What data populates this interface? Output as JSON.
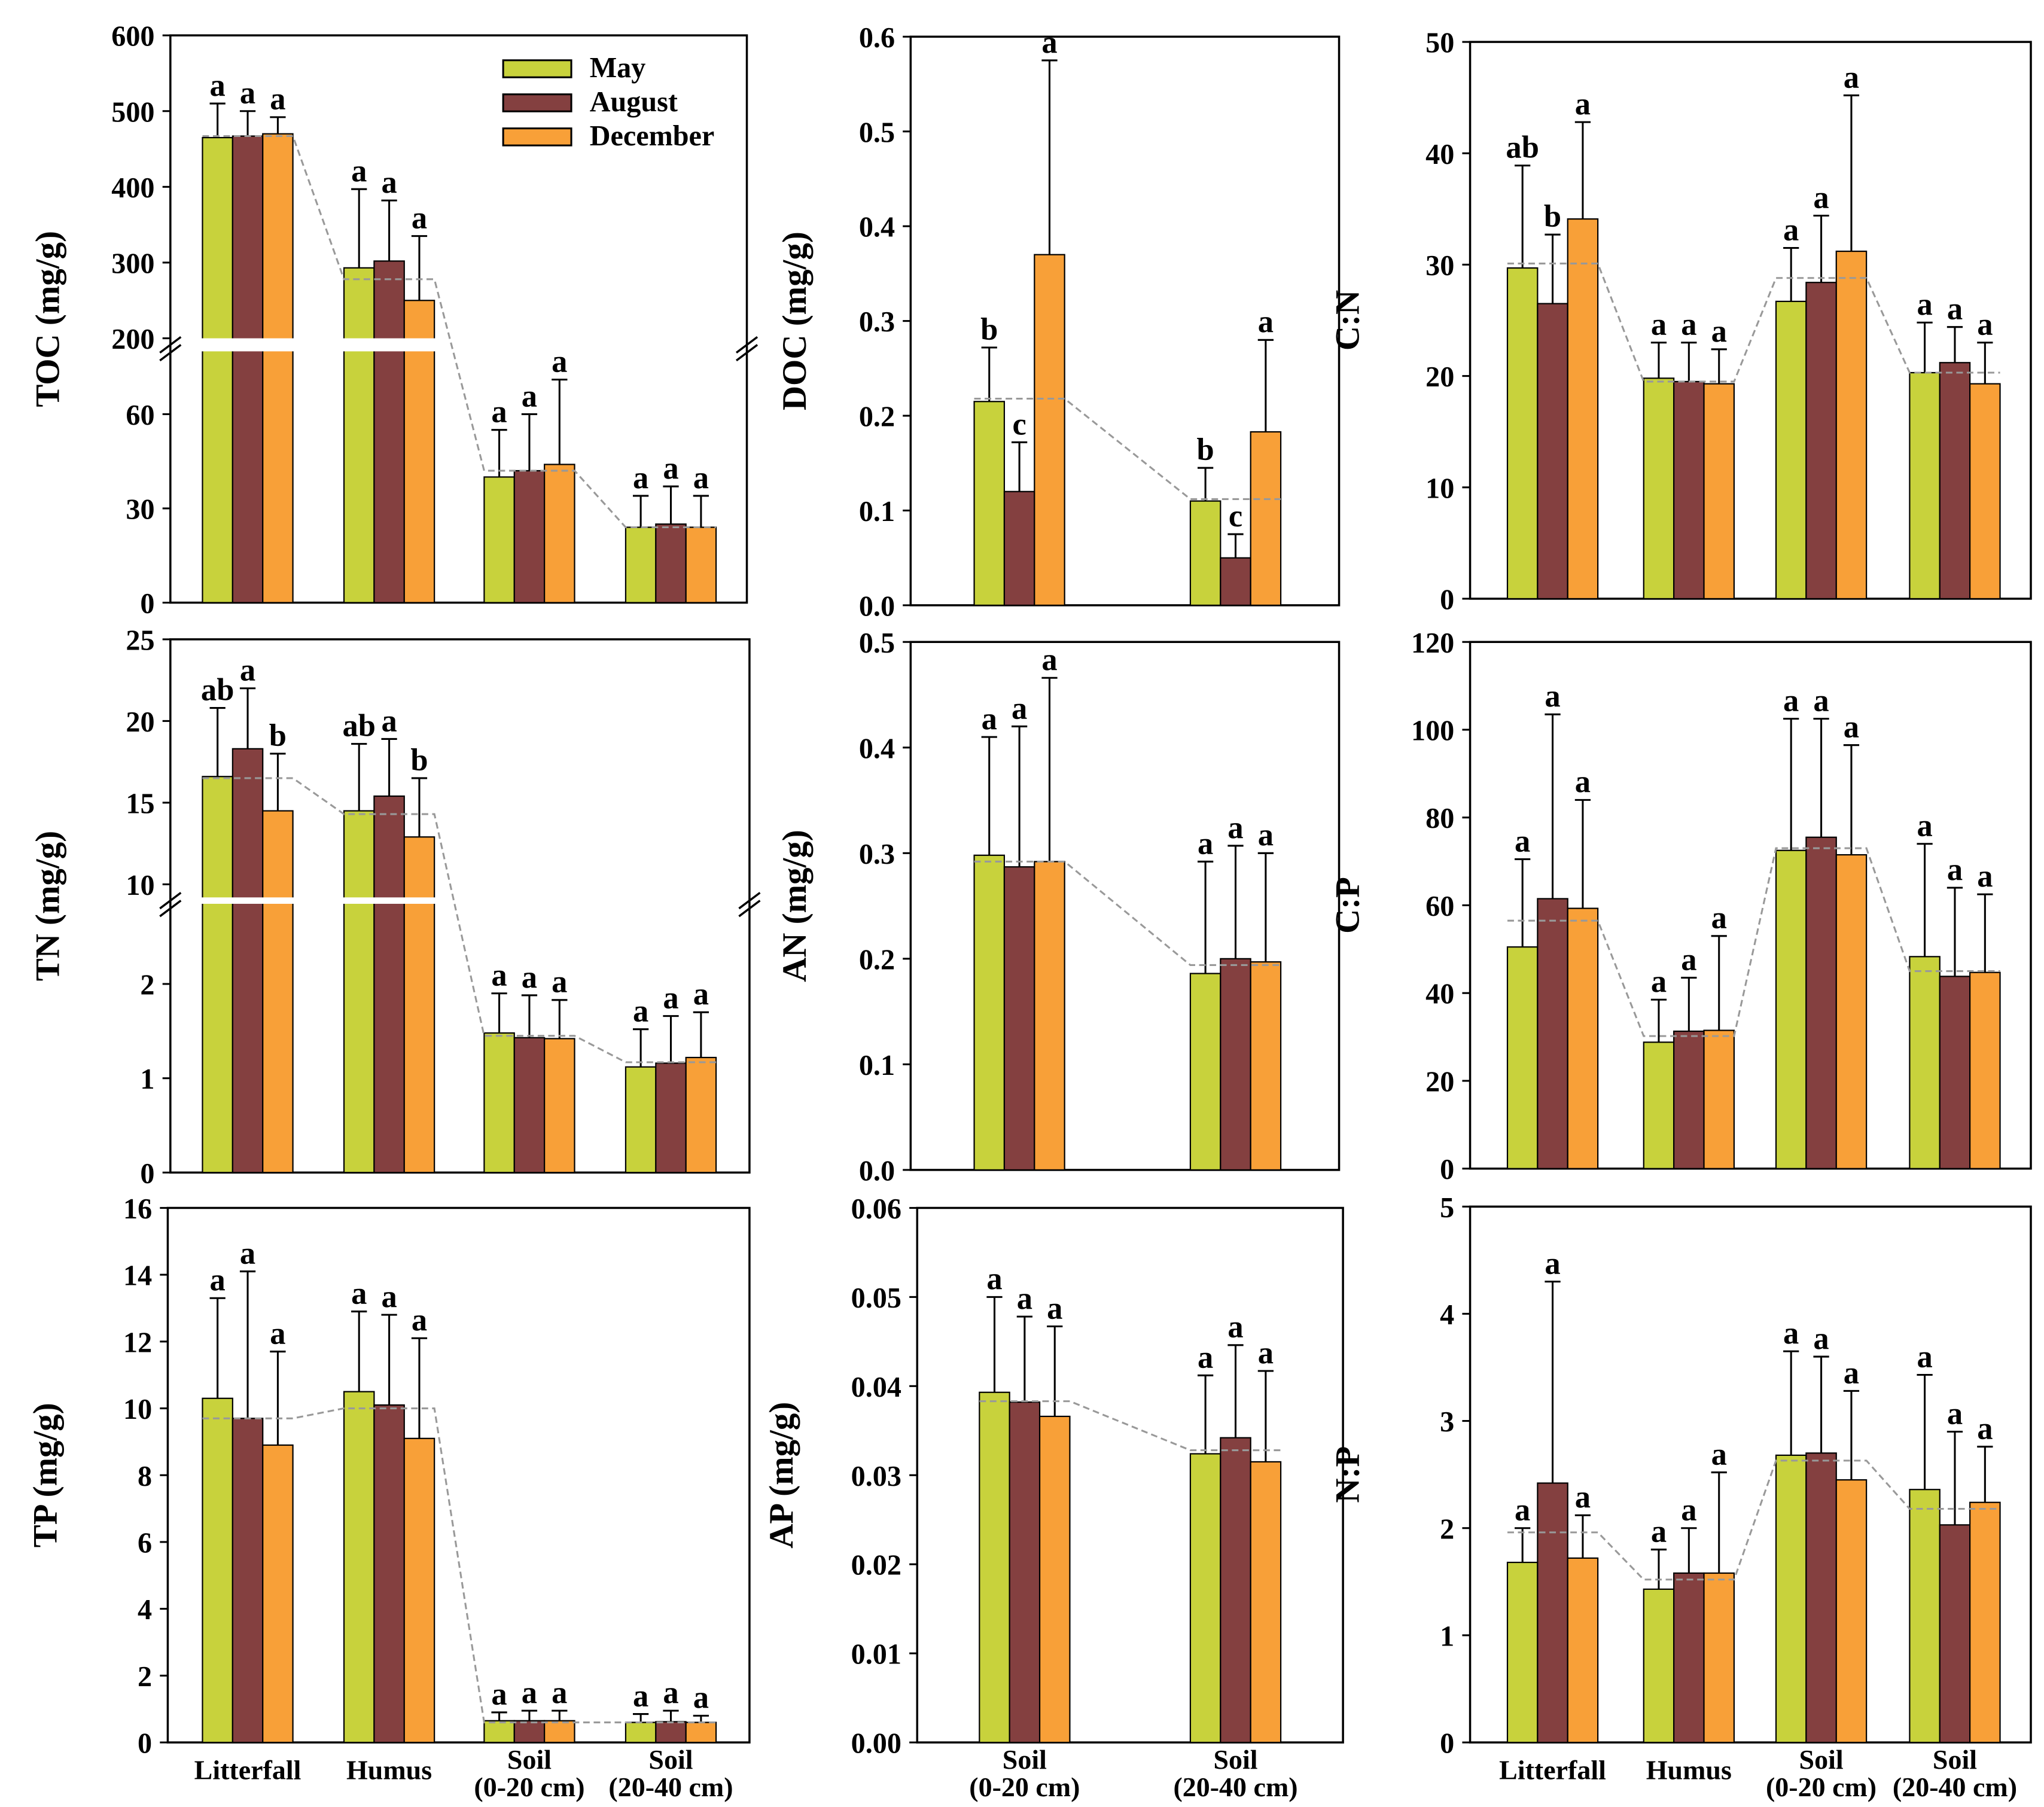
{
  "legend": {
    "items": [
      {
        "label": "May",
        "color": "#C8D23C"
      },
      {
        "label": "August",
        "color": "#844040"
      },
      {
        "label": "December",
        "color": "#F8A038"
      }
    ]
  },
  "chart_data": [
    {
      "id": "toc",
      "type": "bar",
      "ylabel": "TOC (mg/g)",
      "categories": [
        "Litterfall",
        "Humus",
        "Soil\n(0-20 cm)",
        "Soil\n(20-40 cm)"
      ],
      "yticks": [
        0,
        30,
        60,
        200,
        300,
        400,
        500,
        600
      ],
      "ylim": [
        0,
        600
      ],
      "axis_break": {
        "lower": [
          0,
          80
        ],
        "upper": [
          200,
          600
        ]
      },
      "series": [
        {
          "name": "May",
          "values": [
            465,
            293,
            40,
            24
          ],
          "err_top": [
            510,
            397,
            55,
            34
          ],
          "letters": [
            "a",
            "a",
            "a",
            "a"
          ]
        },
        {
          "name": "August",
          "values": [
            467,
            302,
            42,
            25
          ],
          "err_top": [
            500,
            382,
            60,
            37
          ],
          "letters": [
            "a",
            "a",
            "a",
            "a"
          ]
        },
        {
          "name": "December",
          "values": [
            470,
            250,
            44,
            24
          ],
          "err_top": [
            492,
            335,
            71,
            34
          ],
          "letters": [
            "a",
            "a",
            "a",
            "a"
          ]
        }
      ],
      "mean_line": [
        467,
        278,
        42,
        24
      ]
    },
    {
      "id": "doc",
      "type": "bar",
      "ylabel": "DOC (mg/g)",
      "categories": [
        "Soil\n(0-20 cm)",
        "Soil\n(20-40 cm)"
      ],
      "yticks": [
        0,
        0.1,
        0.2,
        0.3,
        0.4,
        0.5,
        0.6
      ],
      "tick_decimals": 1,
      "ylim": [
        0,
        0.6
      ],
      "series": [
        {
          "name": "May",
          "values": [
            0.215,
            0.11
          ],
          "err_top": [
            0.272,
            0.145
          ],
          "letters": [
            "b",
            "b"
          ]
        },
        {
          "name": "August",
          "values": [
            0.12,
            0.05
          ],
          "err_top": [
            0.172,
            0.075
          ],
          "letters": [
            "c",
            "c"
          ]
        },
        {
          "name": "December",
          "values": [
            0.37,
            0.183
          ],
          "err_top": [
            0.575,
            0.28
          ],
          "letters": [
            "a",
            "a"
          ]
        }
      ],
      "mean_line": [
        0.218,
        0.112
      ]
    },
    {
      "id": "cn",
      "type": "bar",
      "ylabel": "C:N",
      "categories": [
        "Litterfall",
        "Humus",
        "Soil\n(0-20 cm)",
        "Soil\n(20-40 cm)"
      ],
      "yticks": [
        0,
        10,
        20,
        30,
        40,
        50
      ],
      "ylim": [
        0,
        50
      ],
      "series": [
        {
          "name": "May",
          "values": [
            29.7,
            19.8,
            26.7,
            20.3
          ],
          "err_top": [
            38.9,
            23,
            31.5,
            24.8
          ],
          "letters": [
            "ab",
            "a",
            "a",
            "a"
          ]
        },
        {
          "name": "August",
          "values": [
            26.5,
            19.5,
            28.4,
            21.2
          ],
          "err_top": [
            32.7,
            23,
            34.4,
            24.4
          ],
          "letters": [
            "b",
            "a",
            "a",
            "a"
          ]
        },
        {
          "name": "December",
          "values": [
            34.1,
            19.3,
            31.2,
            19.3
          ],
          "err_top": [
            42.8,
            22.4,
            45.2,
            23
          ],
          "letters": [
            "a",
            "a",
            "a",
            "a"
          ]
        }
      ],
      "mean_line": [
        30.1,
        19.5,
        28.8,
        20.3
      ]
    },
    {
      "id": "tn",
      "type": "bar",
      "ylabel": "TN (mg/g)",
      "categories": [
        "Litterfall",
        "Humus",
        "Soil\n(0-20 cm)",
        "Soil\n(20-40 cm)"
      ],
      "yticks": [
        0,
        1,
        2,
        10,
        15,
        20,
        25
      ],
      "ylim": [
        0,
        25
      ],
      "axis_break": {
        "lower": [
          0,
          2.85
        ],
        "upper": [
          9.2,
          25
        ]
      },
      "series": [
        {
          "name": "May",
          "values": [
            16.6,
            14.5,
            1.48,
            1.12
          ],
          "err_top": [
            20.8,
            18.6,
            1.9,
            1.52
          ],
          "letters": [
            "ab",
            "ab",
            "a",
            "a"
          ]
        },
        {
          "name": "August",
          "values": [
            18.3,
            15.4,
            1.43,
            1.16
          ],
          "err_top": [
            22,
            18.9,
            1.88,
            1.66
          ],
          "letters": [
            "a",
            "a",
            "a",
            "a"
          ]
        },
        {
          "name": "December",
          "values": [
            14.5,
            12.9,
            1.42,
            1.22
          ],
          "err_top": [
            18,
            16.5,
            1.83,
            1.7
          ],
          "letters": [
            "b",
            "b",
            "a",
            "a"
          ]
        }
      ],
      "mean_line": [
        16.5,
        14.3,
        1.45,
        1.17
      ]
    },
    {
      "id": "an",
      "type": "bar",
      "ylabel": "AN (mg/g)",
      "categories": [
        "Soil\n(0-20 cm)",
        "Soil\n(20-40 cm)"
      ],
      "yticks": [
        0,
        0.1,
        0.2,
        0.3,
        0.4,
        0.5
      ],
      "tick_decimals": 1,
      "ylim": [
        0,
        0.5
      ],
      "series": [
        {
          "name": "May",
          "values": [
            0.298,
            0.186
          ],
          "err_top": [
            0.41,
            0.292
          ],
          "letters": [
            "a",
            "a"
          ]
        },
        {
          "name": "August",
          "values": [
            0.287,
            0.2
          ],
          "err_top": [
            0.42,
            0.307
          ],
          "letters": [
            "a",
            "a"
          ]
        },
        {
          "name": "December",
          "values": [
            0.292,
            0.197
          ],
          "err_top": [
            0.466,
            0.3
          ],
          "letters": [
            "a",
            "a"
          ]
        }
      ],
      "mean_line": [
        0.292,
        0.194
      ]
    },
    {
      "id": "cp",
      "type": "bar",
      "ylabel": "C:P",
      "categories": [
        "Litterfall",
        "Humus",
        "Soil\n(0-20 cm)",
        "Soil\n(20-40 cm)"
      ],
      "yticks": [
        0,
        20,
        40,
        60,
        80,
        100,
        120
      ],
      "ylim": [
        0,
        120
      ],
      "series": [
        {
          "name": "May",
          "values": [
            50.5,
            28.8,
            72.5,
            48.3
          ],
          "err_top": [
            70.5,
            38.5,
            102.5,
            74
          ],
          "letters": [
            "a",
            "a",
            "a",
            "a"
          ]
        },
        {
          "name": "August",
          "values": [
            61.5,
            31.3,
            75.5,
            43.8
          ],
          "err_top": [
            103.5,
            43.5,
            102.5,
            64
          ],
          "letters": [
            "a",
            "a",
            "a",
            "a"
          ]
        },
        {
          "name": "December",
          "values": [
            59.3,
            31.5,
            71.5,
            44.7
          ],
          "err_top": [
            84,
            53,
            96.5,
            62.5
          ],
          "letters": [
            "a",
            "a",
            "a",
            "a"
          ]
        }
      ],
      "mean_line": [
        56.5,
        30.2,
        73,
        45
      ]
    },
    {
      "id": "tp",
      "type": "bar",
      "ylabel": "TP (mg/g)",
      "categories": [
        "Litterfall",
        "Humus",
        "Soil\n(0-20 cm)",
        "Soil\n(20-40 cm)"
      ],
      "yticks": [
        0,
        2,
        4,
        6,
        8,
        10,
        12,
        14,
        16
      ],
      "ylim": [
        0,
        16
      ],
      "series": [
        {
          "name": "May",
          "values": [
            10.3,
            10.5,
            0.65,
            0.6
          ],
          "err_top": [
            13.3,
            12.9,
            0.9,
            0.85
          ],
          "letters": [
            "a",
            "a",
            "a",
            "a"
          ]
        },
        {
          "name": "August",
          "values": [
            9.7,
            10.1,
            0.65,
            0.62
          ],
          "err_top": [
            14.1,
            12.8,
            0.95,
            0.95
          ],
          "letters": [
            "a",
            "a",
            "a",
            "a"
          ]
        },
        {
          "name": "December",
          "values": [
            8.9,
            9.1,
            0.65,
            0.6
          ],
          "err_top": [
            11.7,
            12.1,
            0.95,
            0.8
          ],
          "letters": [
            "a",
            "a",
            "a",
            "a"
          ]
        }
      ],
      "mean_line": [
        9.7,
        10.0,
        0.6,
        0.6
      ]
    },
    {
      "id": "ap",
      "type": "bar",
      "ylabel": "AP (mg/g)",
      "categories": [
        "Soil\n(0-20 cm)",
        "Soil\n(20-40 cm)"
      ],
      "yticks": [
        0,
        0.01,
        0.02,
        0.03,
        0.04,
        0.05,
        0.06
      ],
      "tick_decimals": 2,
      "ylim": [
        0,
        0.06
      ],
      "series": [
        {
          "name": "May",
          "values": [
            0.0393,
            0.0324
          ],
          "err_top": [
            0.05,
            0.0412
          ],
          "letters": [
            "a",
            "a"
          ]
        },
        {
          "name": "August",
          "values": [
            0.0382,
            0.0342
          ],
          "err_top": [
            0.0478,
            0.0446
          ],
          "letters": [
            "a",
            "a"
          ]
        },
        {
          "name": "December",
          "values": [
            0.0366,
            0.0315
          ],
          "err_top": [
            0.0467,
            0.0417
          ],
          "letters": [
            "a",
            "a"
          ]
        }
      ],
      "mean_line": [
        0.0383,
        0.0328
      ]
    },
    {
      "id": "np",
      "type": "bar",
      "ylabel": "N:P",
      "categories": [
        "Litterfall",
        "Humus",
        "Soil\n(0-20 cm)",
        "Soil\n(20-40 cm)"
      ],
      "yticks": [
        0,
        1,
        2,
        3,
        4,
        5
      ],
      "ylim": [
        0,
        5
      ],
      "series": [
        {
          "name": "May",
          "values": [
            1.68,
            1.43,
            2.68,
            2.36
          ],
          "err_top": [
            2.0,
            1.8,
            3.65,
            3.43
          ],
          "letters": [
            "a",
            "a",
            "a",
            "a"
          ]
        },
        {
          "name": "August",
          "values": [
            2.42,
            1.58,
            2.7,
            2.03
          ],
          "err_top": [
            4.3,
            2.0,
            3.6,
            2.9
          ],
          "letters": [
            "a",
            "a",
            "a",
            "a"
          ]
        },
        {
          "name": "December",
          "values": [
            1.72,
            1.58,
            2.45,
            2.24
          ],
          "err_top": [
            2.12,
            2.52,
            3.28,
            2.76
          ],
          "letters": [
            "a",
            "a",
            "a",
            "a"
          ]
        }
      ],
      "mean_line": [
        1.96,
        1.52,
        2.63,
        2.18
      ]
    }
  ]
}
